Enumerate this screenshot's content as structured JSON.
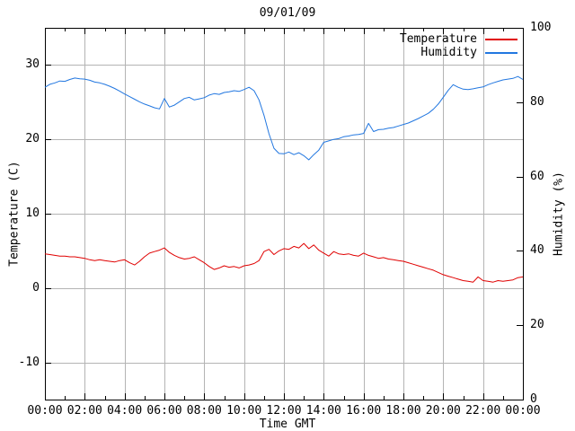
{
  "title": "09/01/09",
  "legend": {
    "items": [
      {
        "label": "Temperature",
        "color": "#e00000"
      },
      {
        "label": "Humidity",
        "color": "#2277e0"
      }
    ]
  },
  "axes": {
    "x_label": "Time GMT",
    "y_left_label": "Temperature (C)",
    "y_right_label": "Humidity (%)",
    "x_tick_labels": [
      "00:00",
      "02:00",
      "04:00",
      "06:00",
      "08:00",
      "10:00",
      "12:00",
      "14:00",
      "16:00",
      "18:00",
      "20:00",
      "22:00",
      "00:00"
    ],
    "y_left_tick_labels": [
      "-10",
      "0",
      "10",
      "20",
      "30"
    ],
    "y_right_tick_labels": [
      "0",
      "20",
      "40",
      "60",
      "80",
      "100"
    ]
  },
  "colors": {
    "background": "#ffffff",
    "grid": "#b4b4b4",
    "axis": "#000000"
  },
  "chart_data": {
    "type": "line",
    "title": "09/01/09",
    "xlabel": "Time GMT",
    "ylabel_left": "Temperature (C)",
    "ylabel_right": "Humidity (%)",
    "x_unit": "hours",
    "x_range": [
      0,
      24
    ],
    "x_tick_step_hours": 2,
    "x_minor_tick_step_hours": 1,
    "y_left_range": [
      -15,
      35
    ],
    "y_left_ticks": [
      -10,
      0,
      10,
      20,
      30
    ],
    "y_right_range": [
      0,
      100
    ],
    "y_right_ticks": [
      0,
      20,
      40,
      60,
      80,
      100
    ],
    "grid": true,
    "legend_position": "top-right-inside",
    "sample_interval_minutes": 15,
    "series": [
      {
        "name": "Temperature",
        "axis": "left",
        "color": "#e00000",
        "values": [
          4.6,
          4.5,
          4.4,
          4.3,
          4.3,
          4.2,
          4.2,
          4.1,
          4.0,
          3.8,
          3.7,
          3.8,
          3.7,
          3.6,
          3.5,
          3.7,
          3.8,
          3.4,
          3.1,
          3.6,
          4.2,
          4.7,
          4.9,
          5.1,
          5.4,
          4.8,
          4.4,
          4.1,
          3.9,
          4.0,
          4.2,
          3.8,
          3.4,
          2.9,
          2.5,
          2.7,
          3.0,
          2.8,
          2.9,
          2.7,
          3.0,
          3.1,
          3.3,
          3.7,
          4.9,
          5.2,
          4.5,
          5.0,
          5.3,
          5.2,
          5.6,
          5.4,
          6.0,
          5.3,
          5.8,
          5.1,
          4.7,
          4.3,
          4.9,
          4.6,
          4.5,
          4.6,
          4.4,
          4.3,
          4.7,
          4.4,
          4.2,
          4.0,
          4.1,
          3.9,
          3.8,
          3.7,
          3.6,
          3.4,
          3.2,
          3.0,
          2.8,
          2.6,
          2.4,
          2.1,
          1.8,
          1.6,
          1.4,
          1.2,
          1.0,
          0.9,
          0.8,
          1.5,
          1.0,
          0.9,
          0.8,
          1.0,
          0.9,
          1.0,
          1.1,
          1.4,
          1.5
        ]
      },
      {
        "name": "Humidity",
        "axis": "right",
        "color": "#2277e0",
        "values": [
          84.0,
          84.8,
          85.2,
          85.7,
          85.6,
          86.1,
          86.5,
          86.3,
          86.2,
          85.9,
          85.4,
          85.2,
          84.8,
          84.3,
          83.7,
          83.0,
          82.2,
          81.5,
          80.8,
          80.1,
          79.5,
          79.0,
          78.5,
          78.2,
          81.0,
          78.7,
          79.2,
          80.1,
          81.0,
          81.3,
          80.6,
          80.9,
          81.2,
          81.9,
          82.3,
          82.1,
          82.6,
          82.8,
          83.1,
          82.9,
          83.4,
          84.0,
          83.1,
          80.6,
          76.5,
          71.5,
          67.6,
          66.2,
          66.1,
          66.6,
          65.9,
          66.4,
          65.6,
          64.5,
          65.9,
          67.1,
          69.2,
          69.6,
          70.0,
          70.2,
          70.7,
          70.9,
          71.2,
          71.3,
          71.6,
          74.3,
          72.1,
          72.6,
          72.7,
          73.0,
          73.2,
          73.6,
          74.0,
          74.4,
          75.0,
          75.6,
          76.3,
          77.0,
          78.1,
          79.5,
          81.3,
          83.2,
          84.7,
          84.0,
          83.5,
          83.4,
          83.6,
          83.9,
          84.1,
          84.7,
          85.2,
          85.6,
          86.0,
          86.2,
          86.4,
          86.9,
          86.1
        ]
      }
    ]
  }
}
